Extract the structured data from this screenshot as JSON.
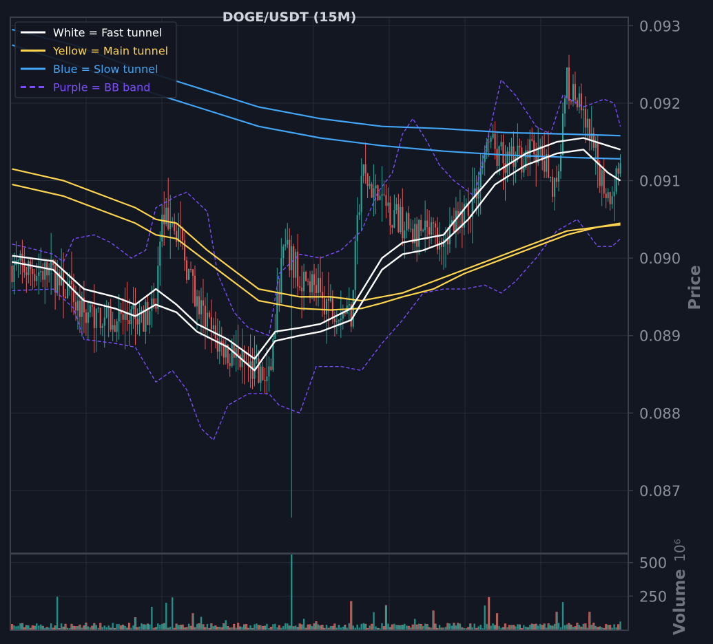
{
  "chart_data": {
    "type": "line",
    "title": "DOGE/USDT (15M)",
    "colors": {
      "background": "#131722",
      "grid": "#262b38",
      "frame": "#3a3f4b",
      "tick": "#8c8f98",
      "up": "#26a69a",
      "down": "#ef5350",
      "fast": "#ffffff",
      "main": "#ffd54f",
      "slow": "#42a5f5",
      "bb": "#7c4dff"
    },
    "price_axis": {
      "label": "Price",
      "ylim": [
        0.0862,
        0.0931
      ],
      "ticks": [
        "0.093",
        "0.092",
        "0.091",
        "0.090",
        "0.089",
        "0.088",
        "0.087"
      ]
    },
    "volume_axis": {
      "label": "Volume",
      "multiplier": "10⁶",
      "ylim": [
        0,
        560
      ],
      "ticks": [
        "500",
        "250"
      ]
    },
    "x_index_range": [
      0,
      299
    ],
    "legend": {
      "position": "top-left",
      "items": [
        {
          "label": "White = Fast tunnel",
          "color": "#ffffff",
          "style": "solid"
        },
        {
          "label": "Yellow = Main tunnel",
          "color": "#ffd54f",
          "style": "solid"
        },
        {
          "label": "Blue = Slow tunnel",
          "color": "#42a5f5",
          "style": "solid"
        },
        {
          "label": "Purple = BB band",
          "color": "#7c4dff",
          "style": "dashed"
        }
      ]
    },
    "close_path": [
      [
        0,
        0.0899
      ],
      [
        20,
        0.0898
      ],
      [
        35,
        0.0893
      ],
      [
        55,
        0.0892
      ],
      [
        70,
        0.0893
      ],
      [
        72,
        0.0904
      ],
      [
        78,
        0.0906
      ],
      [
        90,
        0.0894
      ],
      [
        100,
        0.0889
      ],
      [
        115,
        0.0886
      ],
      [
        125,
        0.0884
      ],
      [
        132,
        0.0901
      ],
      [
        140,
        0.0898
      ],
      [
        155,
        0.0894
      ],
      [
        165,
        0.0893
      ],
      [
        170,
        0.0911
      ],
      [
        178,
        0.0908
      ],
      [
        185,
        0.0906
      ],
      [
        195,
        0.0903
      ],
      [
        205,
        0.0903
      ],
      [
        215,
        0.0904
      ],
      [
        225,
        0.0908
      ],
      [
        232,
        0.0916
      ],
      [
        240,
        0.0912
      ],
      [
        255,
        0.0914
      ],
      [
        265,
        0.0909
      ],
      [
        270,
        0.0923
      ],
      [
        278,
        0.0918
      ],
      [
        290,
        0.0908
      ],
      [
        296,
        0.0912
      ]
    ],
    "fast_tunnel": [
      [
        [
          0,
          0.09003
        ],
        [
          20,
          0.08996
        ],
        [
          35,
          0.0896
        ],
        [
          50,
          0.0895
        ],
        [
          60,
          0.0894
        ],
        [
          70,
          0.0896
        ],
        [
          80,
          0.0894
        ],
        [
          90,
          0.08915
        ],
        [
          105,
          0.08895
        ],
        [
          118,
          0.0887
        ],
        [
          128,
          0.08905
        ],
        [
          140,
          0.0891
        ],
        [
          150,
          0.08915
        ],
        [
          165,
          0.08935
        ],
        [
          180,
          0.09
        ],
        [
          190,
          0.0902
        ],
        [
          200,
          0.09025
        ],
        [
          210,
          0.0903
        ],
        [
          222,
          0.0907
        ],
        [
          235,
          0.0911
        ],
        [
          250,
          0.09135
        ],
        [
          265,
          0.0915
        ],
        [
          278,
          0.09155
        ],
        [
          290,
          0.09145
        ],
        [
          296,
          0.0914
        ]
      ],
      [
        [
          0,
          0.08995
        ],
        [
          20,
          0.08985
        ],
        [
          35,
          0.08945
        ],
        [
          50,
          0.08935
        ],
        [
          60,
          0.08925
        ],
        [
          70,
          0.0894
        ],
        [
          80,
          0.0893
        ],
        [
          90,
          0.08905
        ],
        [
          105,
          0.08885
        ],
        [
          118,
          0.08855
        ],
        [
          128,
          0.08893
        ],
        [
          140,
          0.089
        ],
        [
          150,
          0.08905
        ],
        [
          165,
          0.0892
        ],
        [
          180,
          0.08985
        ],
        [
          190,
          0.09005
        ],
        [
          200,
          0.0901
        ],
        [
          210,
          0.0902
        ],
        [
          222,
          0.0905
        ],
        [
          235,
          0.09095
        ],
        [
          250,
          0.0912
        ],
        [
          265,
          0.09135
        ],
        [
          278,
          0.0914
        ],
        [
          290,
          0.0911
        ],
        [
          296,
          0.091
        ]
      ]
    ],
    "main_tunnel": [
      [
        [
          0,
          0.09115
        ],
        [
          25,
          0.091
        ],
        [
          45,
          0.0908
        ],
        [
          60,
          0.09065
        ],
        [
          70,
          0.0905
        ],
        [
          80,
          0.09045
        ],
        [
          95,
          0.0901
        ],
        [
          110,
          0.0898
        ],
        [
          120,
          0.0896
        ],
        [
          140,
          0.0895
        ],
        [
          155,
          0.0895
        ],
        [
          170,
          0.08945
        ],
        [
          180,
          0.0895
        ],
        [
          190,
          0.08955
        ],
        [
          205,
          0.0897
        ],
        [
          220,
          0.08985
        ],
        [
          235,
          0.09
        ],
        [
          255,
          0.0902
        ],
        [
          270,
          0.09035
        ],
        [
          285,
          0.0904
        ],
        [
          296,
          0.09045
        ]
      ],
      [
        [
          0,
          0.09095
        ],
        [
          25,
          0.0908
        ],
        [
          45,
          0.0906
        ],
        [
          60,
          0.09045
        ],
        [
          70,
          0.0903
        ],
        [
          80,
          0.09025
        ],
        [
          95,
          0.08995
        ],
        [
          110,
          0.08965
        ],
        [
          120,
          0.08945
        ],
        [
          140,
          0.08935
        ],
        [
          155,
          0.08933
        ],
        [
          170,
          0.08935
        ],
        [
          180,
          0.08942
        ],
        [
          190,
          0.0895
        ],
        [
          205,
          0.0896
        ],
        [
          220,
          0.0898
        ],
        [
          235,
          0.08995
        ],
        [
          255,
          0.09015
        ],
        [
          270,
          0.0903
        ],
        [
          285,
          0.0904
        ],
        [
          296,
          0.09043
        ]
      ]
    ],
    "slow_tunnel": [
      [
        [
          0,
          0.09295
        ],
        [
          30,
          0.09275
        ],
        [
          60,
          0.09245
        ],
        [
          90,
          0.0922
        ],
        [
          120,
          0.09195
        ],
        [
          150,
          0.0918
        ],
        [
          180,
          0.0917
        ],
        [
          210,
          0.09167
        ],
        [
          240,
          0.09162
        ],
        [
          270,
          0.0916
        ],
        [
          296,
          0.09158
        ]
      ],
      [
        [
          0,
          0.09275
        ],
        [
          30,
          0.0925
        ],
        [
          60,
          0.0922
        ],
        [
          90,
          0.09195
        ],
        [
          120,
          0.0917
        ],
        [
          150,
          0.09155
        ],
        [
          180,
          0.09145
        ],
        [
          210,
          0.09138
        ],
        [
          240,
          0.09133
        ],
        [
          270,
          0.0913
        ],
        [
          296,
          0.09128
        ]
      ]
    ],
    "bb_upper": [
      [
        0,
        0.09018
      ],
      [
        10,
        0.09012
      ],
      [
        20,
        0.09005
      ],
      [
        25,
        0.08995
      ],
      [
        30,
        0.09025
      ],
      [
        40,
        0.0903
      ],
      [
        48,
        0.0902
      ],
      [
        58,
        0.09
      ],
      [
        65,
        0.0901
      ],
      [
        70,
        0.09065
      ],
      [
        80,
        0.0908
      ],
      [
        85,
        0.09085
      ],
      [
        95,
        0.0906
      ],
      [
        100,
        0.0898
      ],
      [
        108,
        0.0893
      ],
      [
        115,
        0.0891
      ],
      [
        125,
        0.089
      ],
      [
        130,
        0.0898
      ],
      [
        140,
        0.09005
      ],
      [
        150,
        0.09
      ],
      [
        160,
        0.0901
      ],
      [
        170,
        0.09035
      ],
      [
        178,
        0.09085
      ],
      [
        185,
        0.0911
      ],
      [
        190,
        0.0916
      ],
      [
        195,
        0.0918
      ],
      [
        202,
        0.0915
      ],
      [
        208,
        0.0912
      ],
      [
        215,
        0.091
      ],
      [
        225,
        0.0908
      ],
      [
        232,
        0.0916
      ],
      [
        238,
        0.0923
      ],
      [
        245,
        0.0921
      ],
      [
        255,
        0.0917
      ],
      [
        262,
        0.0916
      ],
      [
        268,
        0.0921
      ],
      [
        278,
        0.09195
      ],
      [
        288,
        0.09205
      ],
      [
        293,
        0.092
      ],
      [
        296,
        0.0917
      ]
    ],
    "bb_lower": [
      [
        0,
        0.08958
      ],
      [
        20,
        0.0896
      ],
      [
        30,
        0.08935
      ],
      [
        35,
        0.08895
      ],
      [
        50,
        0.0889
      ],
      [
        60,
        0.08885
      ],
      [
        70,
        0.0884
      ],
      [
        78,
        0.08855
      ],
      [
        85,
        0.0883
      ],
      [
        92,
        0.0878
      ],
      [
        98,
        0.08765
      ],
      [
        105,
        0.0881
      ],
      [
        115,
        0.08825
      ],
      [
        125,
        0.08825
      ],
      [
        130,
        0.0881
      ],
      [
        140,
        0.088
      ],
      [
        148,
        0.0886
      ],
      [
        160,
        0.0886
      ],
      [
        170,
        0.08855
      ],
      [
        180,
        0.0889
      ],
      [
        190,
        0.0892
      ],
      [
        200,
        0.08955
      ],
      [
        210,
        0.0896
      ],
      [
        220,
        0.0896
      ],
      [
        230,
        0.08965
      ],
      [
        238,
        0.08955
      ],
      [
        245,
        0.0897
      ],
      [
        255,
        0.09
      ],
      [
        265,
        0.09035
      ],
      [
        275,
        0.0905
      ],
      [
        285,
        0.09015
      ],
      [
        292,
        0.09015
      ],
      [
        296,
        0.09025
      ]
    ],
    "volume_spikes": [
      [
        22,
        245
      ],
      [
        36,
        50
      ],
      [
        45,
        30
      ],
      [
        60,
        90
      ],
      [
        68,
        170
      ],
      [
        75,
        200
      ],
      [
        78,
        240
      ],
      [
        88,
        120
      ],
      [
        92,
        95
      ],
      [
        104,
        70
      ],
      [
        119,
        45
      ],
      [
        136,
        160
      ],
      [
        136,
        560
      ],
      [
        142,
        80
      ],
      [
        148,
        60
      ],
      [
        165,
        210
      ],
      [
        176,
        130
      ],
      [
        182,
        180
      ],
      [
        196,
        80
      ],
      [
        205,
        140
      ],
      [
        230,
        180
      ],
      [
        232,
        240
      ],
      [
        236,
        120
      ],
      [
        265,
        130
      ],
      [
        268,
        205
      ],
      [
        281,
        130
      ],
      [
        296,
        60
      ]
    ]
  }
}
